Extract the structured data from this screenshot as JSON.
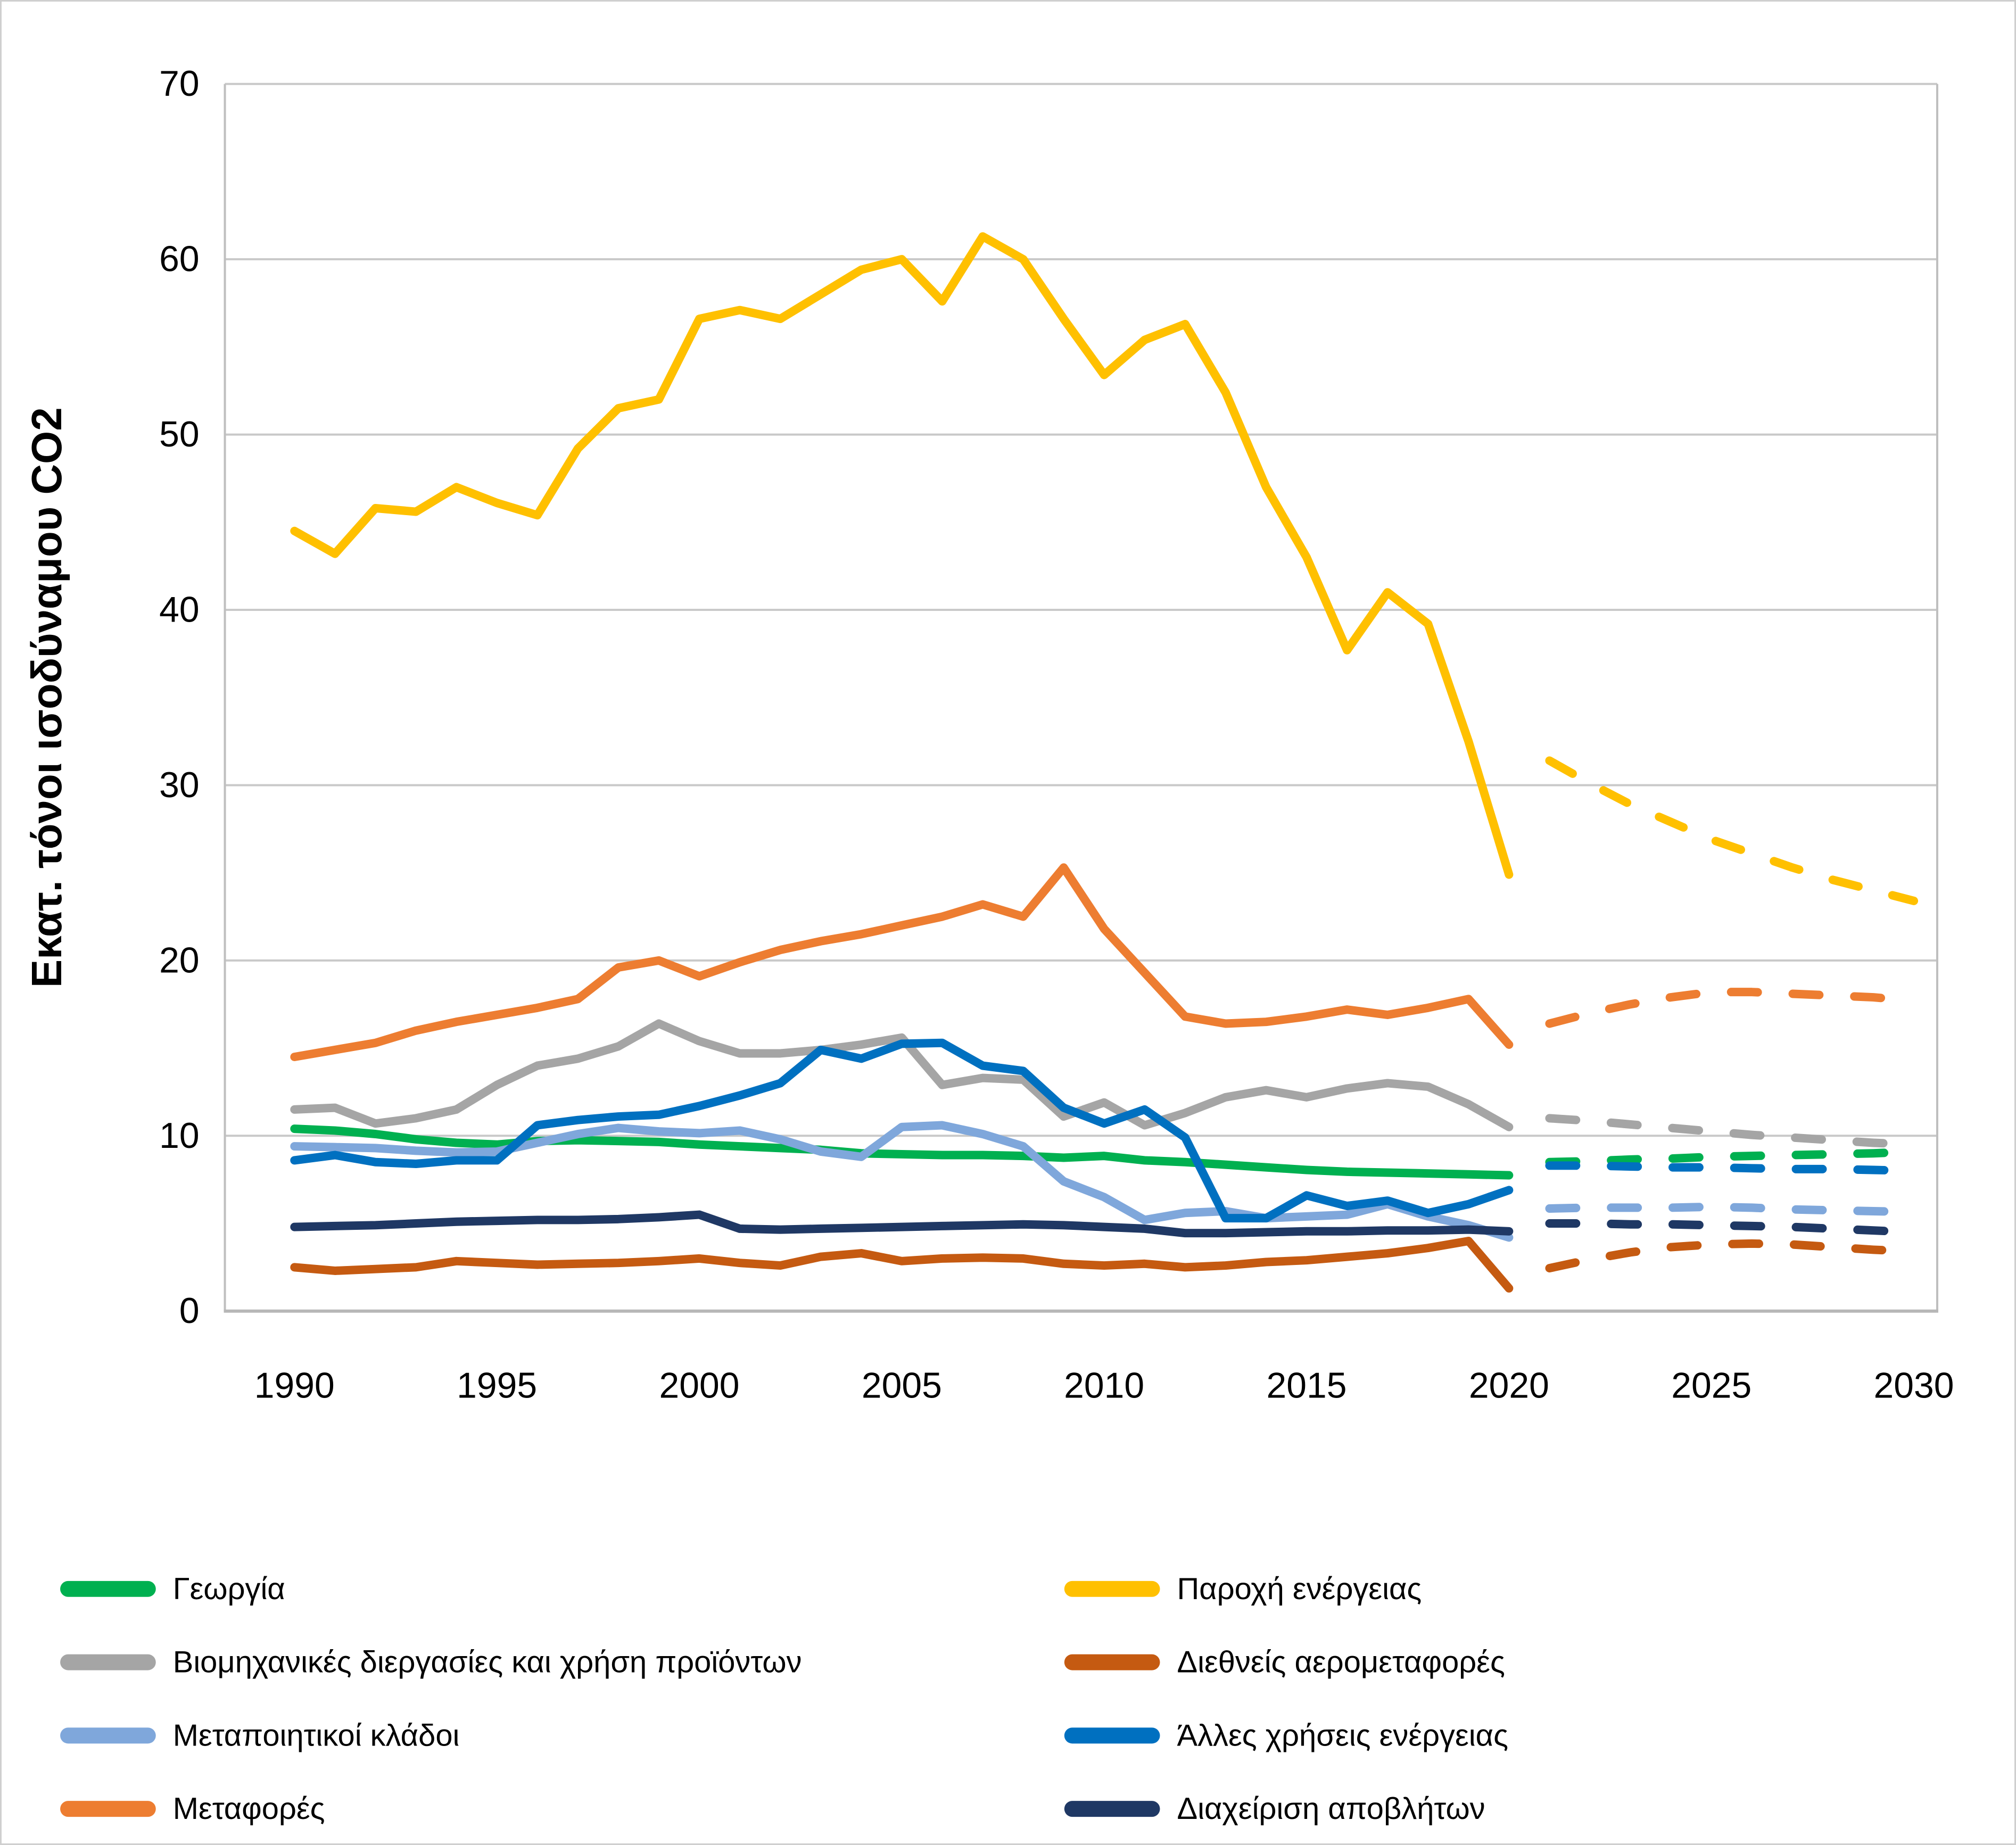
{
  "y_axis": {
    "title": "Εκατ. τόνοι ισοδύναμου CO2",
    "ticks": [
      0,
      10,
      20,
      30,
      40,
      50,
      60,
      70
    ]
  },
  "x_axis": {
    "ticks": [
      1990,
      1995,
      2000,
      2005,
      2010,
      2015,
      2020,
      2025,
      2030
    ]
  },
  "chart_data": {
    "type": "line",
    "title": "",
    "xlabel": "",
    "ylabel": "Εκατ. τόνοι ισοδύναμου CO2",
    "ylim": [
      0,
      70
    ],
    "xlim": [
      1990,
      2030
    ],
    "grid": "horizontal",
    "history_years_range": [
      1990,
      2020
    ],
    "projection_years_range": [
      2021,
      2030
    ],
    "projection_style": "dashed",
    "series": [
      {
        "name": "Γεωργία",
        "color": "#00B050",
        "hist": [
          10.4,
          10.3,
          10.1,
          9.8,
          9.6,
          9.5,
          9.7,
          9.75,
          9.7,
          9.65,
          9.5,
          9.4,
          9.3,
          9.2,
          9.0,
          8.95,
          8.9,
          8.9,
          8.85,
          8.75,
          8.85,
          8.6,
          8.5,
          8.35,
          8.2,
          8.05,
          7.95,
          7.9,
          7.85,
          7.8,
          7.75
        ],
        "proj": [
          8.5,
          8.55,
          8.65,
          8.7,
          8.8,
          8.85,
          8.9,
          8.95,
          9.0,
          9.1
        ]
      },
      {
        "name": "Βιομηχανικές διεργασίες και χρήση προϊόντων",
        "color": "#A5A5A5",
        "hist": [
          11.5,
          11.6,
          10.7,
          11.0,
          11.5,
          12.9,
          14.0,
          14.4,
          15.1,
          16.4,
          15.4,
          14.7,
          14.7,
          14.9,
          15.2,
          15.6,
          12.9,
          13.3,
          13.2,
          11.1,
          11.9,
          10.6,
          11.3,
          12.2,
          12.6,
          12.2,
          12.7,
          13.0,
          12.8,
          11.8,
          10.5
        ],
        "proj": [
          11.0,
          10.85,
          10.65,
          10.45,
          10.25,
          10.05,
          9.9,
          9.75,
          9.6,
          9.5
        ]
      },
      {
        "name": "Μεταποιητικοί κλάδοι",
        "color": "#7FA7DB",
        "hist": [
          9.4,
          9.35,
          9.3,
          9.15,
          9.05,
          9.1,
          9.6,
          10.1,
          10.45,
          10.25,
          10.15,
          10.3,
          9.8,
          9.1,
          8.8,
          10.5,
          10.6,
          10.1,
          9.4,
          7.4,
          6.5,
          5.2,
          5.6,
          5.7,
          5.3,
          5.4,
          5.5,
          6.1,
          5.4,
          4.9,
          4.2
        ],
        "proj": [
          5.85,
          5.9,
          5.9,
          5.9,
          5.95,
          5.9,
          5.8,
          5.75,
          5.7,
          5.65
        ]
      },
      {
        "name": "Μεταφορές",
        "color": "#ED7D31",
        "hist": [
          14.5,
          14.9,
          15.3,
          16.0,
          16.5,
          16.9,
          17.3,
          17.8,
          19.6,
          20.0,
          19.1,
          19.9,
          20.6,
          21.1,
          21.5,
          22.0,
          22.5,
          23.2,
          22.5,
          25.3,
          21.8,
          19.3,
          16.8,
          16.4,
          16.5,
          16.8,
          17.2,
          16.9,
          17.3,
          17.8,
          15.2
        ],
        "proj": [
          16.4,
          17.0,
          17.5,
          17.9,
          18.2,
          18.2,
          18.1,
          18.0,
          17.9,
          17.7
        ]
      },
      {
        "name": "Παροχή ενέργειας",
        "color": "#FFC000",
        "hist": [
          44.5,
          43.2,
          45.8,
          45.6,
          47.0,
          46.1,
          45.4,
          49.2,
          51.5,
          52.0,
          56.6,
          57.1,
          56.6,
          58.0,
          59.4,
          60.0,
          57.6,
          61.3,
          60.0,
          56.6,
          53.4,
          55.4,
          56.3,
          52.4,
          47.0,
          43.0,
          37.7,
          41.0,
          39.2,
          32.5,
          24.9
        ],
        "proj": [
          31.4,
          30.1,
          28.9,
          27.9,
          26.9,
          26.1,
          25.3,
          24.6,
          24.0,
          23.4
        ]
      },
      {
        "name": "Διεθνείς αερομεταφορές",
        "color": "#C55A11",
        "hist": [
          2.5,
          2.3,
          2.4,
          2.5,
          2.85,
          2.75,
          2.65,
          2.7,
          2.75,
          2.85,
          3.0,
          2.75,
          2.6,
          3.1,
          3.3,
          2.85,
          3.0,
          3.05,
          3.0,
          2.7,
          2.6,
          2.7,
          2.5,
          2.6,
          2.8,
          2.9,
          3.1,
          3.3,
          3.6,
          4.0,
          1.3
        ],
        "proj": [
          2.45,
          2.95,
          3.35,
          3.65,
          3.8,
          3.85,
          3.8,
          3.65,
          3.5,
          3.4
        ]
      },
      {
        "name": "Άλλες χρήσεις ενέργειας",
        "color": "#0070C0",
        "hist": [
          8.6,
          8.9,
          8.5,
          8.4,
          8.6,
          8.6,
          10.6,
          10.9,
          11.1,
          11.2,
          11.7,
          12.3,
          13.0,
          14.9,
          14.4,
          15.25,
          15.3,
          14.0,
          13.7,
          11.6,
          10.7,
          11.5,
          9.9,
          5.3,
          5.3,
          6.6,
          6.0,
          6.3,
          5.6,
          6.1,
          6.9
        ],
        "proj": [
          8.3,
          8.3,
          8.25,
          8.2,
          8.2,
          8.15,
          8.1,
          8.1,
          8.05,
          8.0
        ]
      },
      {
        "name": "Διαχείριση αποβλήτων",
        "color": "#1F3864",
        "hist": [
          4.8,
          4.85,
          4.9,
          5.0,
          5.1,
          5.15,
          5.2,
          5.2,
          5.25,
          5.35,
          5.5,
          4.7,
          4.65,
          4.7,
          4.75,
          4.8,
          4.85,
          4.9,
          4.95,
          4.9,
          4.8,
          4.7,
          4.45,
          4.45,
          4.5,
          4.55,
          4.55,
          4.6,
          4.6,
          4.65,
          4.55
        ],
        "proj": [
          5.0,
          5.0,
          4.95,
          4.95,
          4.9,
          4.85,
          4.8,
          4.7,
          4.6,
          4.5
        ]
      }
    ]
  },
  "legend": {
    "left_column": [
      0,
      1,
      2,
      3
    ],
    "right_column": [
      4,
      5,
      6,
      7
    ]
  }
}
